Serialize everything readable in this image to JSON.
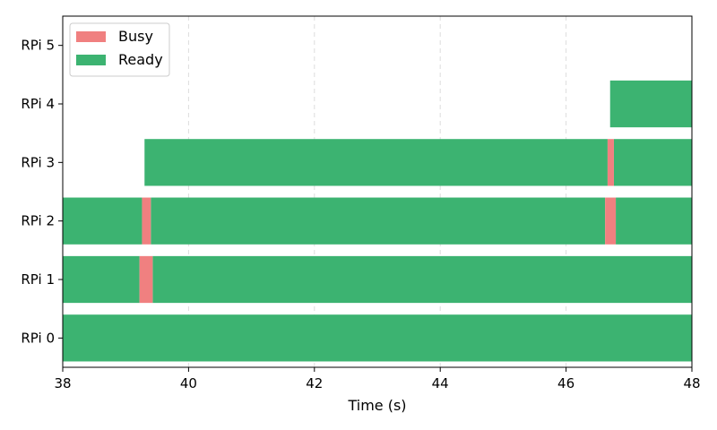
{
  "chart_data": {
    "type": "gantt",
    "xlabel": "Time (s)",
    "xlim": [
      38,
      48
    ],
    "x_ticks": [
      38,
      40,
      42,
      44,
      46,
      48
    ],
    "x_tick_labels": [
      "38",
      "40",
      "42",
      "44",
      "46",
      "48"
    ],
    "categories": [
      "RPi 0",
      "RPi 1",
      "RPi 2",
      "RPi 3",
      "RPi 4",
      "RPi 5"
    ],
    "grid": "vertical dashed",
    "legend": {
      "placement": "top-left",
      "entries": [
        {
          "name": "Busy",
          "color": "#f08080"
        },
        {
          "name": "Ready",
          "color": "#3cb371"
        }
      ]
    },
    "series": [
      {
        "name": "Ready",
        "color": "#3cb371",
        "segments": [
          {
            "device": "RPi 0",
            "start": 38.0,
            "end": 48.0
          },
          {
            "device": "RPi 1",
            "start": 38.0,
            "end": 39.22
          },
          {
            "device": "RPi 1",
            "start": 39.43,
            "end": 48.0
          },
          {
            "device": "RPi 2",
            "start": 38.0,
            "end": 39.26
          },
          {
            "device": "RPi 2",
            "start": 39.4,
            "end": 46.62
          },
          {
            "device": "RPi 2",
            "start": 46.79,
            "end": 48.0
          },
          {
            "device": "RPi 3",
            "start": 39.3,
            "end": 46.66
          },
          {
            "device": "RPi 3",
            "start": 46.76,
            "end": 48.0
          },
          {
            "device": "RPi 4",
            "start": 46.7,
            "end": 48.0
          }
        ]
      },
      {
        "name": "Busy",
        "color": "#f08080",
        "segments": [
          {
            "device": "RPi 1",
            "start": 39.22,
            "end": 39.43
          },
          {
            "device": "RPi 2",
            "start": 39.26,
            "end": 39.4
          },
          {
            "device": "RPi 2",
            "start": 46.62,
            "end": 46.79
          },
          {
            "device": "RPi 3",
            "start": 46.66,
            "end": 46.76
          }
        ]
      }
    ]
  }
}
